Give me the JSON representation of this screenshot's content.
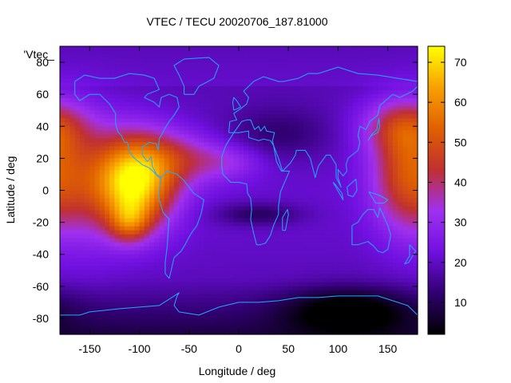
{
  "chart_data": {
    "type": "heatmap",
    "title": "VTEC / TECU 20020706_187.81000",
    "xlabel": "Longitude / deg",
    "ylabel": "Latitude / deg",
    "legend_label": "'Vtec_",
    "xlim": [
      -180,
      180
    ],
    "ylim": [
      -90,
      90
    ],
    "x_ticks": [
      -150,
      -100,
      -50,
      0,
      50,
      100,
      150
    ],
    "y_ticks": [
      -80,
      -60,
      -40,
      -20,
      0,
      20,
      40,
      60,
      80
    ],
    "colorbar": {
      "range": [
        2,
        74
      ],
      "ticks": [
        10,
        20,
        30,
        40,
        50,
        60,
        70
      ],
      "stops": [
        "#000000",
        "#300070",
        "#7010e0",
        "#a030f0",
        "#c03030",
        "#e06000",
        "#f8a000",
        "#ffff00"
      ]
    },
    "grid": {
      "lon_step": 5,
      "lat_step": 2.5,
      "features": [
        {
          "lon": -105,
          "lat": 5,
          "amp": 52,
          "slon": 28,
          "slat": 20
        },
        {
          "lon": -110,
          "lat": -20,
          "amp": 18,
          "slon": 14,
          "slat": 9
        },
        {
          "lon": -60,
          "lat": 20,
          "amp": 15,
          "slon": 30,
          "slat": 12
        },
        {
          "lon": -10,
          "lat": 18,
          "amp": 10,
          "slon": 25,
          "slat": 8
        },
        {
          "lon": 170,
          "lat": 10,
          "amp": 28,
          "slon": 25,
          "slat": 25
        },
        {
          "lon": 165,
          "lat": 40,
          "amp": 18,
          "slon": 30,
          "slat": 12
        },
        {
          "lon": -150,
          "lat": 5,
          "amp": 10,
          "slon": 25,
          "slat": 30
        },
        {
          "lon": 110,
          "lat": -75,
          "amp": -16,
          "slon": 45,
          "slat": 10
        },
        {
          "lon": 20,
          "lat": -15,
          "amp": -10,
          "slon": 30,
          "slat": 5
        },
        {
          "lon": 40,
          "lat": 35,
          "amp": -8,
          "slon": 40,
          "slat": 12
        }
      ]
    }
  },
  "coastlines": [
    {
      "name": "north-america",
      "points": [
        [
          -165,
          68
        ],
        [
          -155,
          72
        ],
        [
          -140,
          70
        ],
        [
          -125,
          70
        ],
        [
          -110,
          73
        ],
        [
          -95,
          72
        ],
        [
          -85,
          70
        ],
        [
          -80,
          63
        ],
        [
          -92,
          60
        ],
        [
          -95,
          58
        ],
        [
          -85,
          55
        ],
        [
          -80,
          52
        ],
        [
          -78,
          58
        ],
        [
          -70,
          60
        ],
        [
          -62,
          58
        ],
        [
          -60,
          52
        ],
        [
          -65,
          47
        ],
        [
          -70,
          43
        ],
        [
          -75,
          38
        ],
        [
          -80,
          32
        ],
        [
          -81,
          25
        ],
        [
          -83,
          29
        ],
        [
          -90,
          30
        ],
        [
          -97,
          27
        ],
        [
          -97,
          22
        ],
        [
          -92,
          18
        ],
        [
          -88,
          21
        ],
        [
          -87,
          15
        ],
        [
          -83,
          10
        ],
        [
          -78,
          8
        ],
        [
          -80,
          8
        ],
        [
          -85,
          11
        ],
        [
          -90,
          14
        ],
        [
          -97,
          16
        ],
        [
          -105,
          20
        ],
        [
          -110,
          24
        ],
        [
          -112,
          30
        ],
        [
          -115,
          30
        ],
        [
          -118,
          34
        ],
        [
          -122,
          37
        ],
        [
          -124,
          42
        ],
        [
          -124,
          48
        ],
        [
          -130,
          54
        ],
        [
          -140,
          60
        ],
        [
          -150,
          60
        ],
        [
          -155,
          58
        ],
        [
          -160,
          56
        ],
        [
          -165,
          60
        ],
        [
          -165,
          68
        ]
      ]
    },
    {
      "name": "south-america",
      "points": [
        [
          -78,
          8
        ],
        [
          -72,
          12
        ],
        [
          -62,
          10
        ],
        [
          -55,
          6
        ],
        [
          -50,
          2
        ],
        [
          -45,
          -2
        ],
        [
          -35,
          -6
        ],
        [
          -38,
          -15
        ],
        [
          -42,
          -22
        ],
        [
          -48,
          -27
        ],
        [
          -55,
          -35
        ],
        [
          -58,
          -38
        ],
        [
          -65,
          -42
        ],
        [
          -68,
          -50
        ],
        [
          -70,
          -55
        ],
        [
          -74,
          -52
        ],
        [
          -74,
          -45
        ],
        [
          -72,
          -35
        ],
        [
          -71,
          -25
        ],
        [
          -70,
          -18
        ],
        [
          -76,
          -14
        ],
        [
          -80,
          -6
        ],
        [
          -80,
          0
        ],
        [
          -78,
          8
        ]
      ]
    },
    {
      "name": "greenland",
      "points": [
        [
          -55,
          60
        ],
        [
          -45,
          60
        ],
        [
          -40,
          65
        ],
        [
          -25,
          70
        ],
        [
          -20,
          78
        ],
        [
          -30,
          83
        ],
        [
          -55,
          82
        ],
        [
          -65,
          78
        ],
        [
          -60,
          72
        ],
        [
          -55,
          65
        ],
        [
          -55,
          60
        ]
      ]
    },
    {
      "name": "eurasia",
      "points": [
        [
          -10,
          36
        ],
        [
          -9,
          43
        ],
        [
          -2,
          44
        ],
        [
          -5,
          48
        ],
        [
          2,
          51
        ],
        [
          8,
          54
        ],
        [
          10,
          58
        ],
        [
          5,
          62
        ],
        [
          15,
          68
        ],
        [
          25,
          71
        ],
        [
          40,
          68
        ],
        [
          45,
          68
        ],
        [
          60,
          70
        ],
        [
          70,
          73
        ],
        [
          80,
          73
        ],
        [
          100,
          77
        ],
        [
          120,
          73
        ],
        [
          140,
          72
        ],
        [
          160,
          70
        ],
        [
          180,
          68
        ]
      ]
    },
    {
      "name": "asia-south",
      "points": [
        [
          180,
          65
        ],
        [
          175,
          62
        ],
        [
          162,
          58
        ],
        [
          155,
          60
        ],
        [
          142,
          53
        ],
        [
          140,
          47
        ],
        [
          132,
          43
        ],
        [
          128,
          38
        ],
        [
          122,
          40
        ],
        [
          120,
          34
        ],
        [
          122,
          30
        ],
        [
          120,
          25
        ],
        [
          110,
          20
        ],
        [
          108,
          16
        ],
        [
          109,
          12
        ],
        [
          105,
          9
        ],
        [
          100,
          13
        ],
        [
          100,
          8
        ],
        [
          103,
          2
        ],
        [
          98,
          8
        ],
        [
          98,
          16
        ],
        [
          92,
          22
        ],
        [
          88,
          22
        ],
        [
          80,
          15
        ],
        [
          77,
          8
        ],
        [
          72,
          20
        ],
        [
          67,
          25
        ],
        [
          58,
          25
        ],
        [
          57,
          22
        ],
        [
          52,
          17
        ],
        [
          44,
          12
        ],
        [
          40,
          20
        ],
        [
          35,
          28
        ],
        [
          34,
          31
        ],
        [
          36,
          36
        ],
        [
          28,
          37
        ],
        [
          26,
          40
        ],
        [
          22,
          37
        ],
        [
          20,
          40
        ],
        [
          16,
          38
        ],
        [
          12,
          44
        ],
        [
          8,
          44
        ],
        [
          3,
          43
        ],
        [
          -5,
          36
        ],
        [
          -10,
          36
        ]
      ]
    },
    {
      "name": "africa",
      "points": [
        [
          -17,
          21
        ],
        [
          -17,
          15
        ],
        [
          -16,
          10
        ],
        [
          -8,
          5
        ],
        [
          0,
          5
        ],
        [
          8,
          4
        ],
        [
          9,
          -2
        ],
        [
          12,
          -5
        ],
        [
          13,
          -12
        ],
        [
          12,
          -18
        ],
        [
          15,
          -27
        ],
        [
          18,
          -34
        ],
        [
          22,
          -34
        ],
        [
          27,
          -33
        ],
        [
          32,
          -28
        ],
        [
          35,
          -22
        ],
        [
          40,
          -15
        ],
        [
          40,
          -10
        ],
        [
          42,
          -1
        ],
        [
          51,
          12
        ],
        [
          43,
          12
        ],
        [
          38,
          18
        ],
        [
          35,
          28
        ],
        [
          32,
          31
        ],
        [
          25,
          32
        ],
        [
          20,
          31
        ],
        [
          15,
          32
        ],
        [
          10,
          33
        ],
        [
          10,
          37
        ],
        [
          0,
          36
        ],
        [
          -5,
          36
        ],
        [
          -9,
          32
        ],
        [
          -13,
          28
        ],
        [
          -17,
          21
        ]
      ]
    },
    {
      "name": "australia",
      "points": [
        [
          114,
          -22
        ],
        [
          114,
          -34
        ],
        [
          120,
          -34
        ],
        [
          130,
          -32
        ],
        [
          136,
          -35
        ],
        [
          140,
          -38
        ],
        [
          145,
          -39
        ],
        [
          150,
          -37
        ],
        [
          153,
          -28
        ],
        [
          150,
          -22
        ],
        [
          145,
          -15
        ],
        [
          142,
          -11
        ],
        [
          140,
          -17
        ],
        [
          136,
          -12
        ],
        [
          130,
          -12
        ],
        [
          125,
          -15
        ],
        [
          120,
          -20
        ],
        [
          114,
          -22
        ]
      ]
    },
    {
      "name": "antarctica",
      "points": [
        [
          -180,
          -78
        ],
        [
          -160,
          -78
        ],
        [
          -150,
          -76
        ],
        [
          -120,
          -74
        ],
        [
          -100,
          -73
        ],
        [
          -80,
          -72
        ],
        [
          -70,
          -68
        ],
        [
          -60,
          -64
        ],
        [
          -62,
          -66
        ],
        [
          -65,
          -72
        ],
        [
          -60,
          -76
        ],
        [
          -40,
          -78
        ],
        [
          -20,
          -73
        ],
        [
          0,
          -70
        ],
        [
          20,
          -70
        ],
        [
          40,
          -69
        ],
        [
          60,
          -67
        ],
        [
          80,
          -67
        ],
        [
          100,
          -66
        ],
        [
          120,
          -66
        ],
        [
          140,
          -66
        ],
        [
          160,
          -70
        ],
        [
          170,
          -72
        ],
        [
          180,
          -78
        ]
      ]
    },
    {
      "name": "madagascar",
      "points": [
        [
          44,
          -25
        ],
        [
          47,
          -25
        ],
        [
          50,
          -15
        ],
        [
          49,
          -12
        ],
        [
          44,
          -17
        ],
        [
          44,
          -25
        ]
      ]
    },
    {
      "name": "japan",
      "points": [
        [
          130,
          31
        ],
        [
          133,
          34
        ],
        [
          140,
          36
        ],
        [
          142,
          40
        ],
        [
          141,
          45
        ],
        [
          139,
          38
        ],
        [
          134,
          35
        ],
        [
          130,
          31
        ]
      ]
    },
    {
      "name": "new-zealand",
      "points": [
        [
          172,
          -34
        ],
        [
          178,
          -38
        ],
        [
          175,
          -41
        ],
        [
          171,
          -45
        ],
        [
          167,
          -46
        ],
        [
          172,
          -41
        ],
        [
          172,
          -34
        ]
      ]
    },
    {
      "name": "britain",
      "points": [
        [
          -5,
          50
        ],
        [
          2,
          52
        ],
        [
          -2,
          56
        ],
        [
          -5,
          58
        ],
        [
          -6,
          55
        ],
        [
          -5,
          50
        ]
      ]
    },
    {
      "name": "borneo",
      "points": [
        [
          109,
          2
        ],
        [
          118,
          7
        ],
        [
          119,
          0
        ],
        [
          115,
          -4
        ],
        [
          110,
          -3
        ],
        [
          109,
          2
        ]
      ]
    },
    {
      "name": "sumatra",
      "points": [
        [
          95,
          5
        ],
        [
          105,
          -6
        ],
        [
          104,
          -2
        ],
        [
          98,
          3
        ],
        [
          95,
          5
        ]
      ]
    },
    {
      "name": "new-guinea",
      "points": [
        [
          131,
          -1
        ],
        [
          141,
          -3
        ],
        [
          150,
          -6
        ],
        [
          146,
          -8
        ],
        [
          138,
          -8
        ],
        [
          131,
          -1
        ]
      ]
    }
  ]
}
